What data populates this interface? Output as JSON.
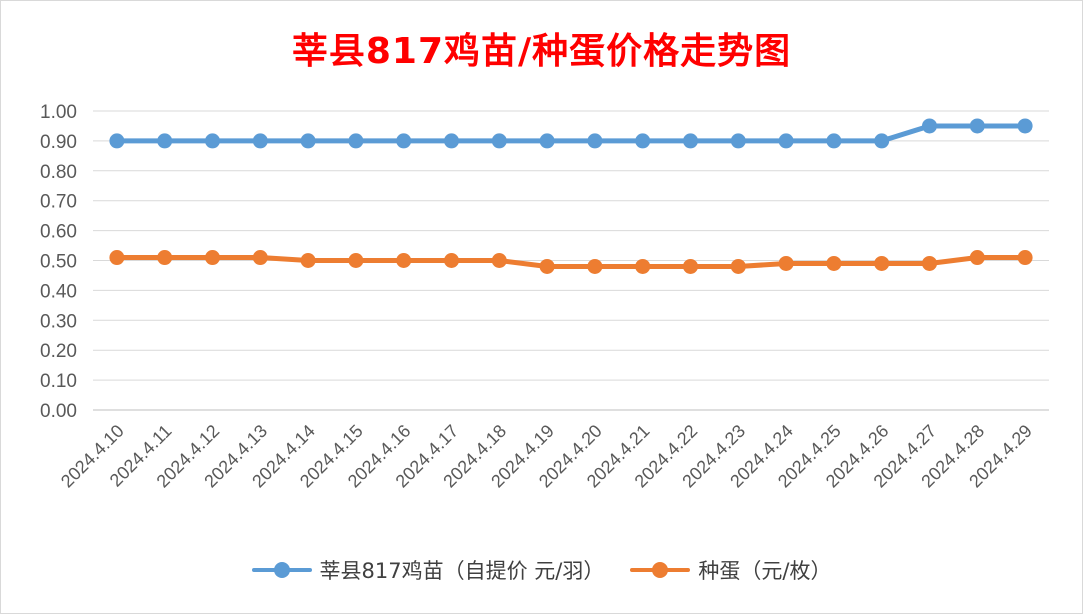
{
  "chart_data": {
    "type": "line",
    "title": "莘县817鸡苗/种蛋价格走势图",
    "categories": [
      "2024.4.10",
      "2024.4.11",
      "2024.4.12",
      "2024.4.13",
      "2024.4.14",
      "2024.4.15",
      "2024.4.16",
      "2024.4.17",
      "2024.4.18",
      "2024.4.19",
      "2024.4.20",
      "2024.4.21",
      "2024.4.22",
      "2024.4.23",
      "2024.4.24",
      "2024.4.25",
      "2024.4.26",
      "2024.4.27",
      "2024.4.28",
      "2024.4.29"
    ],
    "series": [
      {
        "name": "莘县817鸡苗（自提价 元/羽）",
        "color": "#5b9bd5",
        "values": [
          0.9,
          0.9,
          0.9,
          0.9,
          0.9,
          0.9,
          0.9,
          0.9,
          0.9,
          0.9,
          0.9,
          0.9,
          0.9,
          0.9,
          0.9,
          0.9,
          0.9,
          0.95,
          0.95,
          0.95
        ]
      },
      {
        "name": "种蛋（元/枚）",
        "color": "#ed7d31",
        "values": [
          0.51,
          0.51,
          0.51,
          0.51,
          0.5,
          0.5,
          0.5,
          0.5,
          0.5,
          0.48,
          0.48,
          0.48,
          0.48,
          0.48,
          0.49,
          0.49,
          0.49,
          0.49,
          0.51,
          0.51
        ]
      }
    ],
    "yticks": [
      "0.00",
      "0.10",
      "0.20",
      "0.30",
      "0.40",
      "0.50",
      "0.60",
      "0.70",
      "0.80",
      "0.90",
      "1.00"
    ],
    "ylim": [
      0,
      1.0
    ],
    "grid": true,
    "legend": "bottom",
    "title_color": "#ff0000"
  }
}
